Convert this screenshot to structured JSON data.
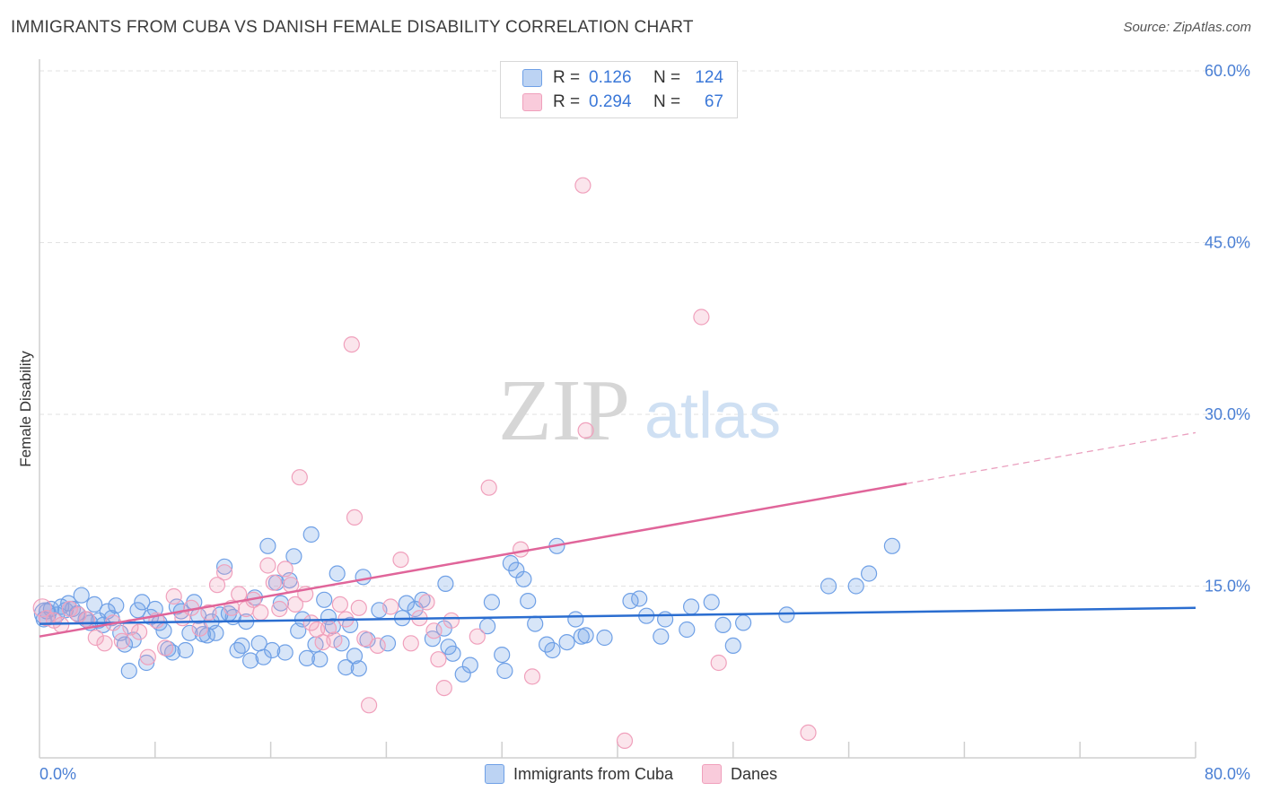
{
  "title": "IMMIGRANTS FROM CUBA VS DANISH FEMALE DISABILITY CORRELATION CHART",
  "source": "Source: ZipAtlas.com",
  "watermark": {
    "zip": "ZIP",
    "atlas": "atlas"
  },
  "legend": {
    "rows": [
      {
        "r_label": "R =",
        "r_value": "0.126",
        "n_label": "N =",
        "n_value": "124",
        "color": "#6fa0e6"
      },
      {
        "r_label": "R =",
        "r_value": "0.294",
        "n_label": "N =",
        "n_value": "67",
        "color": "#f0a0bc"
      }
    ]
  },
  "bottom_legend": {
    "items": [
      {
        "label": "Immigrants from Cuba",
        "color": "#6fa0e6"
      },
      {
        "label": "Danes",
        "color": "#f0a0bc"
      }
    ]
  },
  "chart_data": {
    "type": "scatter",
    "title": "IMMIGRANTS FROM CUBA VS DANISH FEMALE DISABILITY CORRELATION CHART",
    "xlabel": "",
    "ylabel": "Female Disability",
    "xlim": [
      0,
      80
    ],
    "ylim": [
      0,
      60
    ],
    "x_tick_labels": [
      "0.0%",
      "80.0%"
    ],
    "y_ticks": [
      15,
      30,
      45,
      60
    ],
    "y_tick_labels": [
      "15.0%",
      "30.0%",
      "45.0%",
      "60.0%"
    ],
    "grid": true,
    "legend_position": "top-center",
    "series": [
      {
        "name": "Immigrants from Cuba",
        "color": "#6fa0e6",
        "trend": {
          "x": [
            0,
            80
          ],
          "y": [
            11.7,
            13.1
          ],
          "dashed_from": null
        },
        "points": [
          [
            0.3,
            12.1
          ],
          [
            0.5,
            12.8
          ],
          [
            0.8,
            13.0
          ],
          [
            1.2,
            12.5
          ],
          [
            1.5,
            13.2
          ],
          [
            1.8,
            12.9
          ],
          [
            2.0,
            13.5
          ],
          [
            2.3,
            13.0
          ],
          [
            2.6,
            12.6
          ],
          [
            2.9,
            14.2
          ],
          [
            3.2,
            12.1
          ],
          [
            3.5,
            11.8
          ],
          [
            3.8,
            13.4
          ],
          [
            4.1,
            12.0
          ],
          [
            4.4,
            11.6
          ],
          [
            4.7,
            12.8
          ],
          [
            5.0,
            12.2
          ],
          [
            5.3,
            13.3
          ],
          [
            5.6,
            10.9
          ],
          [
            5.9,
            9.9
          ],
          [
            6.2,
            7.6
          ],
          [
            6.5,
            10.3
          ],
          [
            6.8,
            12.9
          ],
          [
            7.1,
            13.6
          ],
          [
            7.4,
            8.3
          ],
          [
            7.7,
            12.3
          ],
          [
            8.0,
            13.0
          ],
          [
            8.3,
            11.8
          ],
          [
            8.6,
            11.1
          ],
          [
            8.9,
            9.5
          ],
          [
            9.2,
            9.2
          ],
          [
            9.5,
            13.2
          ],
          [
            9.8,
            12.8
          ],
          [
            10.1,
            9.4
          ],
          [
            10.4,
            10.9
          ],
          [
            10.7,
            13.6
          ],
          [
            11.0,
            12.4
          ],
          [
            11.3,
            10.8
          ],
          [
            11.6,
            10.7
          ],
          [
            11.9,
            11.9
          ],
          [
            12.2,
            10.9
          ],
          [
            12.5,
            12.5
          ],
          [
            12.8,
            16.7
          ],
          [
            13.1,
            12.6
          ],
          [
            13.4,
            12.3
          ],
          [
            13.7,
            9.4
          ],
          [
            14.0,
            9.8
          ],
          [
            14.3,
            11.9
          ],
          [
            14.6,
            8.5
          ],
          [
            14.9,
            14.0
          ],
          [
            15.2,
            10.0
          ],
          [
            15.5,
            8.8
          ],
          [
            15.8,
            18.5
          ],
          [
            16.1,
            9.4
          ],
          [
            16.4,
            15.3
          ],
          [
            16.7,
            13.5
          ],
          [
            17.0,
            9.2
          ],
          [
            17.3,
            15.5
          ],
          [
            17.6,
            17.6
          ],
          [
            17.9,
            11.1
          ],
          [
            18.2,
            12.1
          ],
          [
            18.5,
            8.7
          ],
          [
            18.8,
            19.5
          ],
          [
            19.1,
            9.9
          ],
          [
            19.4,
            8.6
          ],
          [
            19.7,
            13.8
          ],
          [
            20.0,
            12.3
          ],
          [
            20.3,
            11.5
          ],
          [
            20.6,
            16.1
          ],
          [
            20.9,
            10.0
          ],
          [
            21.2,
            7.9
          ],
          [
            21.5,
            11.6
          ],
          [
            21.8,
            8.9
          ],
          [
            22.1,
            7.8
          ],
          [
            22.4,
            15.8
          ],
          [
            22.7,
            10.3
          ],
          [
            23.5,
            12.9
          ],
          [
            24.1,
            10.0
          ],
          [
            25.1,
            12.2
          ],
          [
            25.4,
            13.5
          ],
          [
            26.0,
            13.0
          ],
          [
            26.5,
            13.8
          ],
          [
            27.2,
            10.4
          ],
          [
            28.0,
            11.3
          ],
          [
            28.3,
            9.7
          ],
          [
            28.6,
            9.1
          ],
          [
            29.3,
            7.3
          ],
          [
            29.8,
            8.1
          ],
          [
            31.0,
            11.5
          ],
          [
            31.3,
            13.6
          ],
          [
            32.0,
            9.0
          ],
          [
            32.2,
            7.6
          ],
          [
            32.6,
            17.0
          ],
          [
            33.0,
            16.4
          ],
          [
            33.5,
            15.6
          ],
          [
            33.8,
            13.7
          ],
          [
            34.3,
            11.7
          ],
          [
            35.1,
            9.9
          ],
          [
            35.5,
            9.4
          ],
          [
            35.8,
            18.5
          ],
          [
            36.5,
            10.1
          ],
          [
            37.1,
            12.1
          ],
          [
            37.5,
            10.6
          ],
          [
            37.8,
            10.7
          ],
          [
            39.1,
            10.5
          ],
          [
            40.9,
            13.7
          ],
          [
            41.5,
            13.9
          ],
          [
            42.0,
            12.4
          ],
          [
            43.0,
            10.6
          ],
          [
            43.3,
            12.1
          ],
          [
            44.8,
            11.2
          ],
          [
            45.1,
            13.2
          ],
          [
            46.5,
            13.6
          ],
          [
            47.3,
            11.6
          ],
          [
            48.0,
            9.8
          ],
          [
            48.7,
            11.8
          ],
          [
            51.7,
            12.5
          ],
          [
            54.6,
            15.0
          ],
          [
            56.5,
            15.0
          ],
          [
            57.4,
            16.1
          ],
          [
            59.0,
            18.5
          ],
          [
            28.1,
            15.2
          ]
        ]
      },
      {
        "name": "Danes",
        "color": "#f0a0bc",
        "trend": {
          "x": [
            0,
            80
          ],
          "y": [
            10.6,
            28.4
          ],
          "dashed_from": 60
        },
        "points": [
          [
            0.5,
            12.2
          ],
          [
            1.0,
            12.0
          ],
          [
            1.5,
            11.6
          ],
          [
            2.1,
            13.0
          ],
          [
            2.7,
            12.5
          ],
          [
            3.3,
            12.1
          ],
          [
            3.9,
            10.5
          ],
          [
            4.5,
            10.0
          ],
          [
            5.1,
            11.8
          ],
          [
            5.7,
            10.2
          ],
          [
            6.3,
            11.4
          ],
          [
            6.9,
            11.0
          ],
          [
            7.5,
            8.8
          ],
          [
            8.1,
            12.0
          ],
          [
            8.7,
            9.6
          ],
          [
            9.3,
            14.1
          ],
          [
            9.9,
            12.2
          ],
          [
            10.5,
            13.1
          ],
          [
            11.1,
            11.3
          ],
          [
            11.7,
            12.7
          ],
          [
            12.3,
            15.1
          ],
          [
            12.8,
            16.2
          ],
          [
            13.3,
            13.1
          ],
          [
            13.8,
            14.3
          ],
          [
            14.3,
            13.0
          ],
          [
            14.8,
            13.8
          ],
          [
            15.3,
            12.7
          ],
          [
            15.8,
            16.8
          ],
          [
            16.2,
            15.3
          ],
          [
            16.6,
            13.0
          ],
          [
            17.0,
            16.5
          ],
          [
            17.4,
            15.1
          ],
          [
            17.7,
            13.4
          ],
          [
            18.0,
            24.5
          ],
          [
            18.4,
            14.3
          ],
          [
            18.8,
            11.8
          ],
          [
            19.2,
            11.2
          ],
          [
            19.6,
            10.1
          ],
          [
            20.0,
            11.3
          ],
          [
            20.4,
            10.3
          ],
          [
            20.8,
            13.4
          ],
          [
            21.2,
            12.1
          ],
          [
            21.6,
            36.1
          ],
          [
            21.8,
            21.0
          ],
          [
            22.1,
            13.1
          ],
          [
            22.5,
            10.4
          ],
          [
            22.8,
            4.6
          ],
          [
            23.4,
            9.8
          ],
          [
            24.3,
            13.2
          ],
          [
            25.0,
            17.3
          ],
          [
            26.3,
            12.2
          ],
          [
            26.8,
            13.6
          ],
          [
            27.3,
            11.1
          ],
          [
            28.0,
            6.1
          ],
          [
            28.5,
            12.0
          ],
          [
            30.3,
            10.6
          ],
          [
            31.1,
            23.6
          ],
          [
            33.3,
            18.2
          ],
          [
            34.1,
            7.1
          ],
          [
            37.6,
            50.0
          ],
          [
            37.8,
            28.6
          ],
          [
            40.5,
            1.5
          ],
          [
            45.8,
            38.5
          ],
          [
            47.0,
            8.3
          ],
          [
            53.2,
            2.2
          ],
          [
            25.7,
            10.0
          ],
          [
            27.6,
            8.6
          ]
        ]
      }
    ]
  }
}
